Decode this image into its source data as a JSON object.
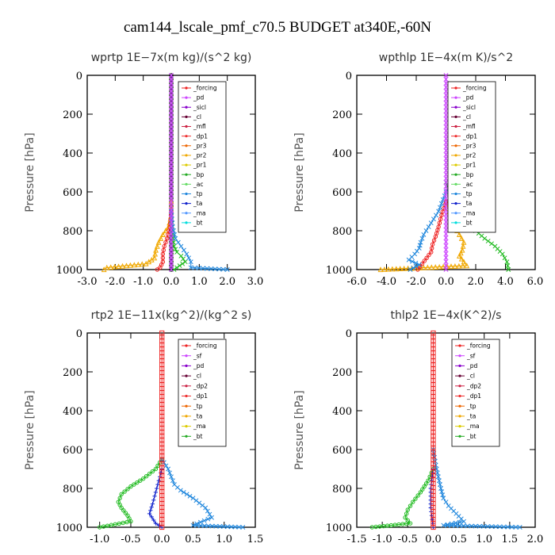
{
  "title": "cam144_lscale_pmf_c70.5  BUDGET at340E,-60N",
  "chart_data": [
    {
      "type": "line",
      "title": "wprtp   1E−7x(m kg)/(s^2 kg)",
      "ylabel": "Pressure [hPa]",
      "xlim": [
        -3.0,
        3.0
      ],
      "ylim": [
        1000,
        0
      ],
      "xticks": [
        -3.0,
        -2.0,
        -1.0,
        0.0,
        1.0,
        2.0,
        3.0
      ],
      "xtick_labels": [
        "-3.0",
        "-2.0",
        "-1.0",
        "0.0",
        "1.0",
        "2.0",
        "3.0"
      ],
      "yticks": [
        0,
        200,
        400,
        600,
        800,
        1000
      ],
      "ytick_labels": [
        "0",
        "200",
        "400",
        "600",
        "800",
        "1000"
      ],
      "legend": [
        "_forcing",
        "_pd",
        "_sicl",
        "_cl",
        "_mfl",
        "_dp1",
        "_pr3",
        "_pr2",
        "_pr1",
        "_bp",
        "_ac",
        "_tp",
        "_ta",
        "_ma",
        "_bt"
      ],
      "legend_position": "top-right",
      "series": [
        {
          "color": "#000000",
          "marker": "circle",
          "points": [
            [
              0,
              0
            ],
            [
              0,
              1000
            ]
          ]
        },
        {
          "color": "#f0a800",
          "marker": "triangle",
          "points": [
            [
              0,
              650
            ],
            [
              0,
              720
            ],
            [
              -0.1,
              780
            ],
            [
              -0.3,
              820
            ],
            [
              -0.45,
              860
            ],
            [
              -0.55,
              900
            ],
            [
              -0.6,
              940
            ],
            [
              -0.9,
              970
            ],
            [
              -2.3,
              990
            ],
            [
              -2.4,
              1000
            ]
          ]
        },
        {
          "color": "#ee2222",
          "marker": "circle",
          "points": [
            [
              0,
              700
            ],
            [
              -0.05,
              780
            ],
            [
              -0.15,
              840
            ],
            [
              -0.25,
              880
            ],
            [
              -0.3,
              920
            ],
            [
              -0.3,
              960
            ],
            [
              -0.4,
              990
            ],
            [
              -0.5,
              1000
            ]
          ]
        },
        {
          "color": "#22bb22",
          "marker": "x",
          "points": [
            [
              0,
              750
            ],
            [
              0.05,
              820
            ],
            [
              0.1,
              880
            ],
            [
              0.2,
              910
            ],
            [
              0.35,
              930
            ],
            [
              0.5,
              960
            ],
            [
              0.3,
              980
            ],
            [
              0.1,
              1000
            ]
          ]
        },
        {
          "color": "#2288dd",
          "marker": "x",
          "points": [
            [
              0,
              700
            ],
            [
              0.05,
              780
            ],
            [
              0.15,
              840
            ],
            [
              0.35,
              880
            ],
            [
              0.55,
              920
            ],
            [
              0.7,
              960
            ],
            [
              0.7,
              990
            ],
            [
              2.0,
              1000
            ]
          ]
        },
        {
          "color": "#cc44ff",
          "marker": "x",
          "points": [
            [
              0,
              0
            ],
            [
              0,
              1000
            ]
          ]
        }
      ]
    },
    {
      "type": "line",
      "title": "wpthlp   1E−4x(m K)/s^2",
      "ylabel": "Pressure [hPa]",
      "xlim": [
        -6.0,
        6.0
      ],
      "ylim": [
        1000,
        0
      ],
      "xticks": [
        -6.0,
        -4.0,
        -2.0,
        0.0,
        2.0,
        4.0,
        6.0
      ],
      "xtick_labels": [
        "-6.0",
        "-4.0",
        "-2.0",
        "0.0",
        "2.0",
        "4.0",
        "6.0"
      ],
      "yticks": [
        0,
        200,
        400,
        600,
        800,
        1000
      ],
      "ytick_labels": [
        "0",
        "200",
        "400",
        "600",
        "800",
        "1000"
      ],
      "legend": [
        "_forcing",
        "_pd",
        "_sicl",
        "_cl",
        "_mfl",
        "_dp1",
        "_pr3",
        "_pr2",
        "_pr1",
        "_bp",
        "_ac",
        "_tp",
        "_ta",
        "_ma",
        "_bt"
      ],
      "legend_position": "top-right",
      "series": [
        {
          "color": "#22bb22",
          "marker": "x",
          "points": [
            [
              0,
              550
            ],
            [
              0.3,
              620
            ],
            [
              0.6,
              680
            ],
            [
              1.0,
              720
            ],
            [
              1.5,
              760
            ],
            [
              2.0,
              800
            ],
            [
              2.6,
              840
            ],
            [
              3.3,
              880
            ],
            [
              3.8,
              920
            ],
            [
              4.1,
              960
            ],
            [
              4.2,
              1000
            ]
          ]
        },
        {
          "color": "#f0a800",
          "marker": "triangle",
          "points": [
            [
              0,
              650
            ],
            [
              0.3,
              720
            ],
            [
              0.6,
              780
            ],
            [
              0.9,
              820
            ],
            [
              1.2,
              860
            ],
            [
              1.1,
              900
            ],
            [
              0.9,
              930
            ],
            [
              1.2,
              960
            ],
            [
              1.4,
              980
            ],
            [
              -4.4,
              1000
            ]
          ]
        },
        {
          "color": "#ee2222",
          "marker": "circle",
          "points": [
            [
              0,
              650
            ],
            [
              -0.3,
              720
            ],
            [
              -0.5,
              780
            ],
            [
              -0.7,
              830
            ],
            [
              -0.9,
              870
            ],
            [
              -1.0,
              910
            ],
            [
              -1.3,
              940
            ],
            [
              -1.6,
              970
            ],
            [
              -1.9,
              1000
            ]
          ]
        },
        {
          "color": "#2288dd",
          "marker": "x",
          "points": [
            [
              0,
              600
            ],
            [
              -0.5,
              700
            ],
            [
              -1.0,
              760
            ],
            [
              -1.5,
              820
            ],
            [
              -1.7,
              860
            ],
            [
              -1.8,
              890
            ],
            [
              -2.1,
              920
            ],
            [
              -2.5,
              950
            ],
            [
              -1.8,
              975
            ],
            [
              -2.4,
              1000
            ]
          ]
        },
        {
          "color": "#cc44ff",
          "marker": "x",
          "points": [
            [
              0,
              0
            ],
            [
              0,
              1000
            ]
          ]
        }
      ]
    },
    {
      "type": "line",
      "title": "rtp2   1E−11x(kg^2)/(kg^2 s)",
      "ylabel": "Pressure [hPa]",
      "xlim": [
        -1.2,
        1.5
      ],
      "ylim": [
        1000,
        0
      ],
      "xticks": [
        -1.0,
        -0.5,
        0.0,
        0.5,
        1.0,
        1.5
      ],
      "xtick_labels": [
        "-1.0",
        "-0.5",
        "0.0",
        "0.5",
        "1.0",
        "1.5"
      ],
      "yticks": [
        0,
        200,
        400,
        600,
        800,
        1000
      ],
      "ytick_labels": [
        "0",
        "200",
        "400",
        "600",
        "800",
        "1000"
      ],
      "legend": [
        "_forcing",
        "_sf",
        "_pd",
        "_cl",
        "_dp2",
        "_dp1",
        "_tp",
        "_ta",
        "_ma",
        "_bt"
      ],
      "legend_position": "top-right",
      "series": [
        {
          "color": "#22bb22",
          "marker": "circle",
          "points": [
            [
              0,
              650
            ],
            [
              -0.1,
              700
            ],
            [
              -0.3,
              750
            ],
            [
              -0.5,
              790
            ],
            [
              -0.65,
              830
            ],
            [
              -0.7,
              870
            ],
            [
              -0.65,
              900
            ],
            [
              -0.55,
              940
            ],
            [
              -0.5,
              970
            ],
            [
              -1.0,
              1000
            ]
          ]
        },
        {
          "color": "#2288dd",
          "marker": "x",
          "points": [
            [
              0,
              650
            ],
            [
              0.1,
              700
            ],
            [
              0.15,
              740
            ],
            [
              0.2,
              780
            ],
            [
              0.3,
              810
            ],
            [
              0.5,
              850
            ],
            [
              0.7,
              900
            ],
            [
              0.8,
              950
            ],
            [
              0.5,
              990
            ],
            [
              1.3,
              1000
            ]
          ]
        },
        {
          "color": "#1122cc",
          "marker": "plus",
          "points": [
            [
              0,
              700
            ],
            [
              -0.05,
              760
            ],
            [
              -0.1,
              820
            ],
            [
              -0.15,
              880
            ],
            [
              -0.2,
              930
            ],
            [
              -0.1,
              980
            ],
            [
              0,
              1000
            ]
          ]
        },
        {
          "color": "#ee2222",
          "marker": "square",
          "points": [
            [
              0,
              0
            ],
            [
              0,
              1000
            ]
          ]
        }
      ]
    },
    {
      "type": "line",
      "title": "thlp2   1E−4x(K^2)/s",
      "ylabel": "Pressure [hPa]",
      "xlim": [
        -1.5,
        2.0
      ],
      "ylim": [
        1000,
        0
      ],
      "xticks": [
        -1.5,
        -1.0,
        -0.5,
        0.0,
        0.5,
        1.0,
        1.5,
        2.0
      ],
      "xtick_labels": [
        "-1.5",
        "-1.0",
        "-0.5",
        "0.0",
        "0.5",
        "1.0",
        "1.5",
        "2.0"
      ],
      "yticks": [
        0,
        200,
        400,
        600,
        800,
        1000
      ],
      "ytick_labels": [
        "0",
        "200",
        "400",
        "600",
        "800",
        "1000"
      ],
      "legend": [
        "_forcing",
        "_sf",
        "_pd",
        "_cl",
        "_dp2",
        "_dp1",
        "_tp",
        "_ta",
        "_ma",
        "_bt"
      ],
      "legend_position": "top-right",
      "series": [
        {
          "color": "#22bb22",
          "marker": "circle",
          "points": [
            [
              0,
              700
            ],
            [
              -0.1,
              760
            ],
            [
              -0.25,
              820
            ],
            [
              -0.4,
              870
            ],
            [
              -0.5,
              910
            ],
            [
              -0.55,
              950
            ],
            [
              -0.45,
              980
            ],
            [
              -1.2,
              1000
            ]
          ]
        },
        {
          "color": "#2288dd",
          "marker": "x",
          "points": [
            [
              0,
              600
            ],
            [
              0.05,
              680
            ],
            [
              0.1,
              740
            ],
            [
              0.15,
              800
            ],
            [
              0.2,
              850
            ],
            [
              0.3,
              890
            ],
            [
              0.45,
              930
            ],
            [
              0.6,
              970
            ],
            [
              0.2,
              990
            ],
            [
              1.7,
              1000
            ]
          ]
        },
        {
          "color": "#1122cc",
          "marker": "plus",
          "points": [
            [
              0,
              700
            ],
            [
              -0.05,
              800
            ],
            [
              -0.05,
              900
            ],
            [
              0,
              1000
            ]
          ]
        },
        {
          "color": "#ee2222",
          "marker": "square",
          "points": [
            [
              0,
              0
            ],
            [
              0,
              1000
            ]
          ]
        }
      ]
    }
  ]
}
